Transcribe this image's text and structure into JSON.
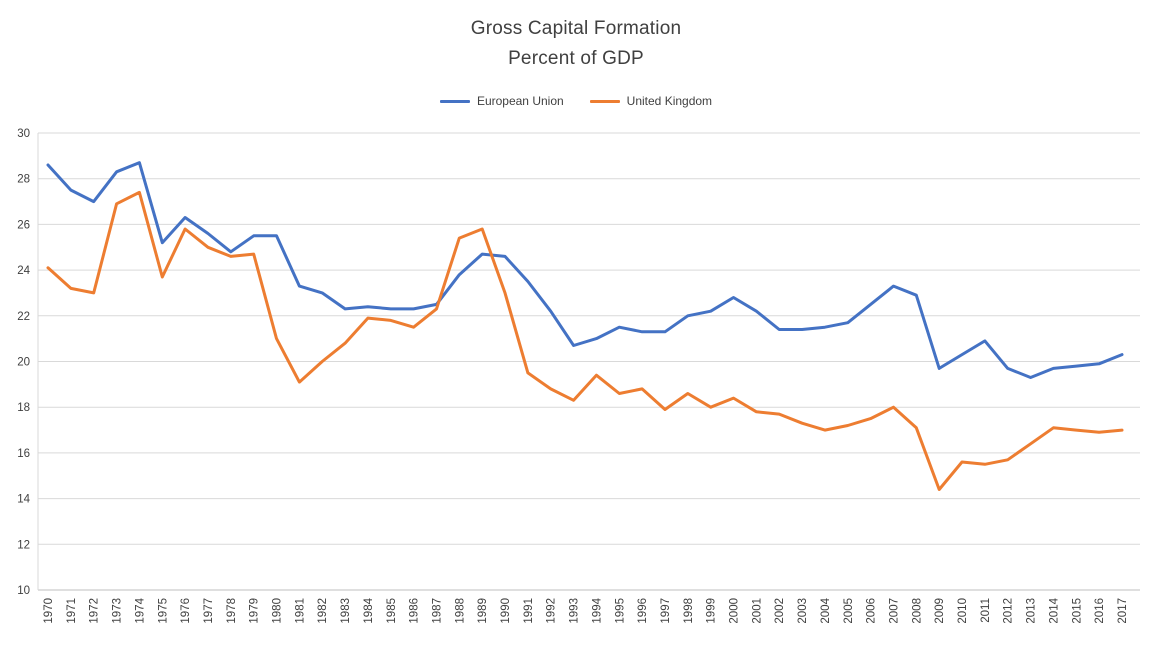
{
  "title": {
    "line1": "Gross Capital Formation",
    "line2": "Percent of GDP"
  },
  "colors": {
    "eu_line": "#4472C4",
    "uk_line": "#ED7D31",
    "gridline": "#D9D9D9",
    "axis_line": "#BFBFBF",
    "text": "#404040"
  },
  "chart_data": {
    "type": "line",
    "title": "Gross Capital Formation Percent of GDP",
    "xlabel": "",
    "ylabel": "",
    "ylim": [
      10,
      30
    ],
    "ytick_step": 2,
    "grid": true,
    "legend_position": "top",
    "x": [
      1970,
      1971,
      1972,
      1973,
      1974,
      1975,
      1976,
      1977,
      1978,
      1979,
      1980,
      1981,
      1982,
      1983,
      1984,
      1985,
      1986,
      1987,
      1988,
      1989,
      1990,
      1991,
      1992,
      1993,
      1994,
      1995,
      1996,
      1997,
      1998,
      1999,
      2000,
      2001,
      2002,
      2003,
      2004,
      2005,
      2006,
      2007,
      2008,
      2009,
      2010,
      2011,
      2012,
      2013,
      2014,
      2015,
      2016,
      2017
    ],
    "series": [
      {
        "name": "European Union",
        "color": "#4472C4",
        "values": [
          28.6,
          27.5,
          27.0,
          28.3,
          28.7,
          25.2,
          26.3,
          25.6,
          24.8,
          25.5,
          25.5,
          23.3,
          23.0,
          22.3,
          22.4,
          22.3,
          22.3,
          22.5,
          23.8,
          24.7,
          24.6,
          23.5,
          22.2,
          20.7,
          21.0,
          21.5,
          21.3,
          21.3,
          22.0,
          22.2,
          22.8,
          22.2,
          21.4,
          21.4,
          21.5,
          21.7,
          22.5,
          23.3,
          22.9,
          19.7,
          20.3,
          20.9,
          19.7,
          19.3,
          19.7,
          19.8,
          19.9,
          20.3
        ]
      },
      {
        "name": "United Kingdom",
        "color": "#ED7D31",
        "values": [
          24.1,
          23.2,
          23.0,
          26.9,
          27.4,
          23.7,
          25.8,
          25.0,
          24.6,
          24.7,
          21.0,
          19.1,
          20.0,
          20.8,
          21.9,
          21.8,
          21.5,
          22.3,
          25.4,
          25.8,
          23.0,
          19.5,
          18.8,
          18.3,
          19.4,
          18.6,
          18.8,
          17.9,
          18.6,
          18.0,
          18.4,
          17.8,
          17.7,
          17.3,
          17.0,
          17.2,
          17.5,
          18.0,
          17.1,
          14.4,
          15.6,
          15.5,
          15.7,
          16.4,
          17.1,
          17.0,
          16.9,
          17.0
        ]
      }
    ]
  }
}
